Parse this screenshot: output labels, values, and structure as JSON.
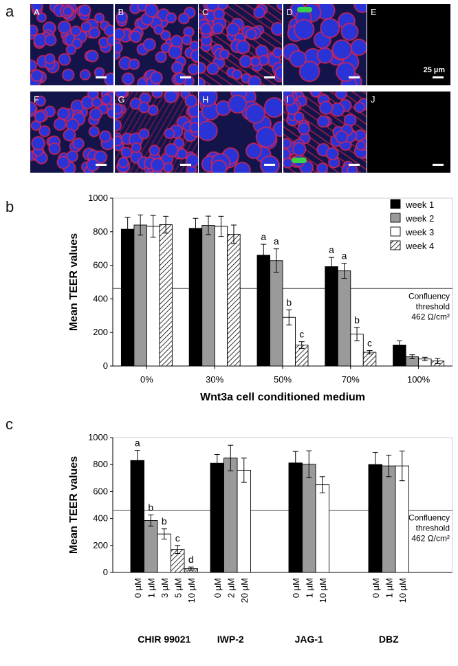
{
  "panel_letters": [
    "a",
    "b",
    "c"
  ],
  "micrographs": {
    "tiles": [
      {
        "label": "A",
        "style": "cobble"
      },
      {
        "label": "B",
        "style": "cobble"
      },
      {
        "label": "C",
        "style": "fibrous"
      },
      {
        "label": "D",
        "style": "large"
      },
      {
        "label": "E",
        "style": "black"
      },
      {
        "label": "F",
        "style": "cobble"
      },
      {
        "label": "G",
        "style": "cobble-red"
      },
      {
        "label": "H",
        "style": "large"
      },
      {
        "label": "I",
        "style": "fibrous"
      },
      {
        "label": "J",
        "style": "black"
      }
    ],
    "scale_text": "25 µm",
    "colors": {
      "nucleus": "#2a33d6",
      "actin": "#d8234e",
      "marker": "#39d14a",
      "background": "#12144a"
    }
  },
  "chart_data": [
    {
      "type": "bar",
      "panel": "b",
      "categories": [
        "0%",
        "30%",
        "50%",
        "70%",
        "100%"
      ],
      "series": [
        {
          "name": "week 1",
          "fill": "#000000",
          "pattern": "solid",
          "values": [
            815,
            820,
            660,
            592,
            125
          ],
          "errors": [
            70,
            60,
            65,
            55,
            25
          ],
          "letters": [
            "",
            "",
            "a",
            "a",
            ""
          ]
        },
        {
          "name": "week 2",
          "fill": "#9a9a9a",
          "pattern": "solid",
          "values": [
            840,
            838,
            628,
            567,
            55
          ],
          "errors": [
            60,
            55,
            70,
            45,
            12
          ],
          "letters": [
            "",
            "",
            "a",
            "a",
            ""
          ]
        },
        {
          "name": "week 3",
          "fill": "#ffffff",
          "pattern": "solid",
          "values": [
            832,
            832,
            290,
            190,
            42
          ],
          "errors": [
            65,
            60,
            45,
            40,
            10
          ],
          "letters": [
            "",
            "",
            "b",
            "b",
            ""
          ]
        },
        {
          "name": "week 4",
          "fill": "#ffffff",
          "pattern": "hatch",
          "values": [
            842,
            785,
            125,
            82,
            30
          ],
          "errors": [
            50,
            55,
            20,
            10,
            15
          ],
          "letters": [
            "",
            "",
            "c",
            "c",
            ""
          ]
        }
      ],
      "xlabel": "Wnt3a cell conditioned medium",
      "ylabel": "Mean TEER values",
      "ylim": [
        0,
        1000
      ],
      "yticks": [
        0,
        200,
        400,
        600,
        800,
        1000
      ],
      "threshold": {
        "value": 462,
        "text": [
          "Confluency",
          "threshold",
          "462 Ω/cm²"
        ]
      },
      "legend": "top-right",
      "grid": false
    },
    {
      "type": "bar",
      "panel": "c",
      "groups": [
        {
          "name": "CHIR 99021",
          "bars": [
            {
              "label": "0 µM",
              "value": 830,
              "error": 75,
              "letter": "a",
              "fill": "#000000",
              "pattern": "solid"
            },
            {
              "label": "1 µM",
              "value": 385,
              "error": 42,
              "letter": "b",
              "fill": "#9a9a9a",
              "pattern": "solid"
            },
            {
              "label": "3 µM",
              "value": 285,
              "error": 38,
              "letter": "b",
              "fill": "#ffffff",
              "pattern": "solid"
            },
            {
              "label": "5 µM",
              "value": 170,
              "error": 30,
              "letter": "c",
              "fill": "#ffffff",
              "pattern": "hatch"
            },
            {
              "label": "10 µM",
              "value": 28,
              "error": 12,
              "letter": "d",
              "fill": "#ffffff",
              "pattern": "cross"
            }
          ]
        },
        {
          "name": "IWP-2",
          "bars": [
            {
              "label": "0 µM",
              "value": 810,
              "error": 65,
              "letter": "",
              "fill": "#000000",
              "pattern": "solid"
            },
            {
              "label": "2 µM",
              "value": 848,
              "error": 95,
              "letter": "",
              "fill": "#9a9a9a",
              "pattern": "solid"
            },
            {
              "label": "20 µM",
              "value": 758,
              "error": 90,
              "letter": "",
              "fill": "#ffffff",
              "pattern": "solid"
            }
          ]
        },
        {
          "name": "JAG-1",
          "bars": [
            {
              "label": "0 µM",
              "value": 812,
              "error": 85,
              "letter": "",
              "fill": "#000000",
              "pattern": "solid"
            },
            {
              "label": "1 µM",
              "value": 802,
              "error": 100,
              "letter": "",
              "fill": "#9a9a9a",
              "pattern": "solid"
            },
            {
              "label": "10 µM",
              "value": 650,
              "error": 60,
              "letter": "",
              "fill": "#ffffff",
              "pattern": "solid"
            }
          ]
        },
        {
          "name": "DBZ",
          "bars": [
            {
              "label": "0 µM",
              "value": 800,
              "error": 90,
              "letter": "",
              "fill": "#000000",
              "pattern": "solid"
            },
            {
              "label": "1 µM",
              "value": 790,
              "error": 80,
              "letter": "",
              "fill": "#9a9a9a",
              "pattern": "solid"
            },
            {
              "label": "10 µM",
              "value": 790,
              "error": 110,
              "letter": "",
              "fill": "#ffffff",
              "pattern": "solid"
            }
          ]
        }
      ],
      "ylabel": "Mean TEER values",
      "ylim": [
        0,
        1000
      ],
      "yticks": [
        0,
        200,
        400,
        600,
        800,
        1000
      ],
      "threshold": {
        "value": 462,
        "text": [
          "Confluency",
          "threshold",
          "462 Ω/cm²"
        ]
      },
      "grid": false
    }
  ]
}
